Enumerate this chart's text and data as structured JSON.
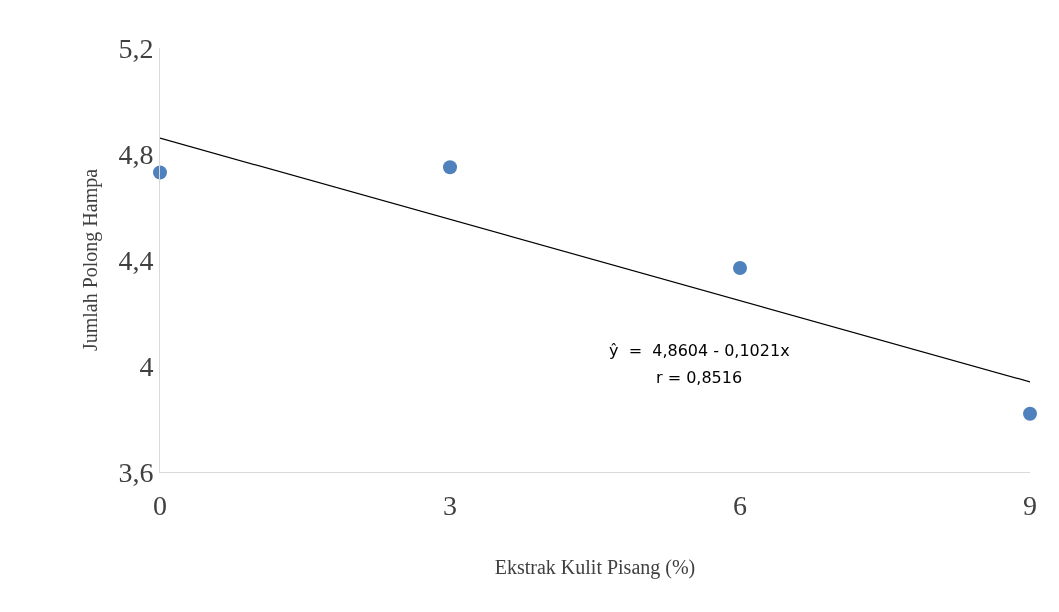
{
  "chart_data": {
    "type": "scatter",
    "xlabel": "Ekstrak Kulit Pisang (%)",
    "ylabel": "Jumlah Polong Hampa",
    "series": [
      {
        "color": "#4f81bd",
        "x": [
          0,
          3,
          6,
          9
        ],
        "values": [
          4.73,
          4.75,
          4.37,
          3.82
        ],
        "marker": "circle"
      },
      {
        "type": "line",
        "color": "#000000",
        "x": [
          0,
          9
        ],
        "values": [
          4.86,
          3.94
        ],
        "marker": "none",
        "line_style": "solid"
      }
    ],
    "xlim": [
      0,
      9
    ],
    "xticks": [
      0,
      3,
      6,
      9
    ],
    "ylim": [
      3.6,
      5.2
    ],
    "yticks": [
      {
        "value": 3.6,
        "label": "3,6"
      },
      {
        "value": 4.0,
        "label": "4"
      },
      {
        "value": 4.4,
        "label": "4,4"
      },
      {
        "value": 4.8,
        "label": "4,8"
      },
      {
        "value": 5.2,
        "label": "5,2"
      }
    ],
    "annotations": [
      "ŷ  =  4,8604 - 0,1021x",
      "r = 0,8516"
    ]
  }
}
